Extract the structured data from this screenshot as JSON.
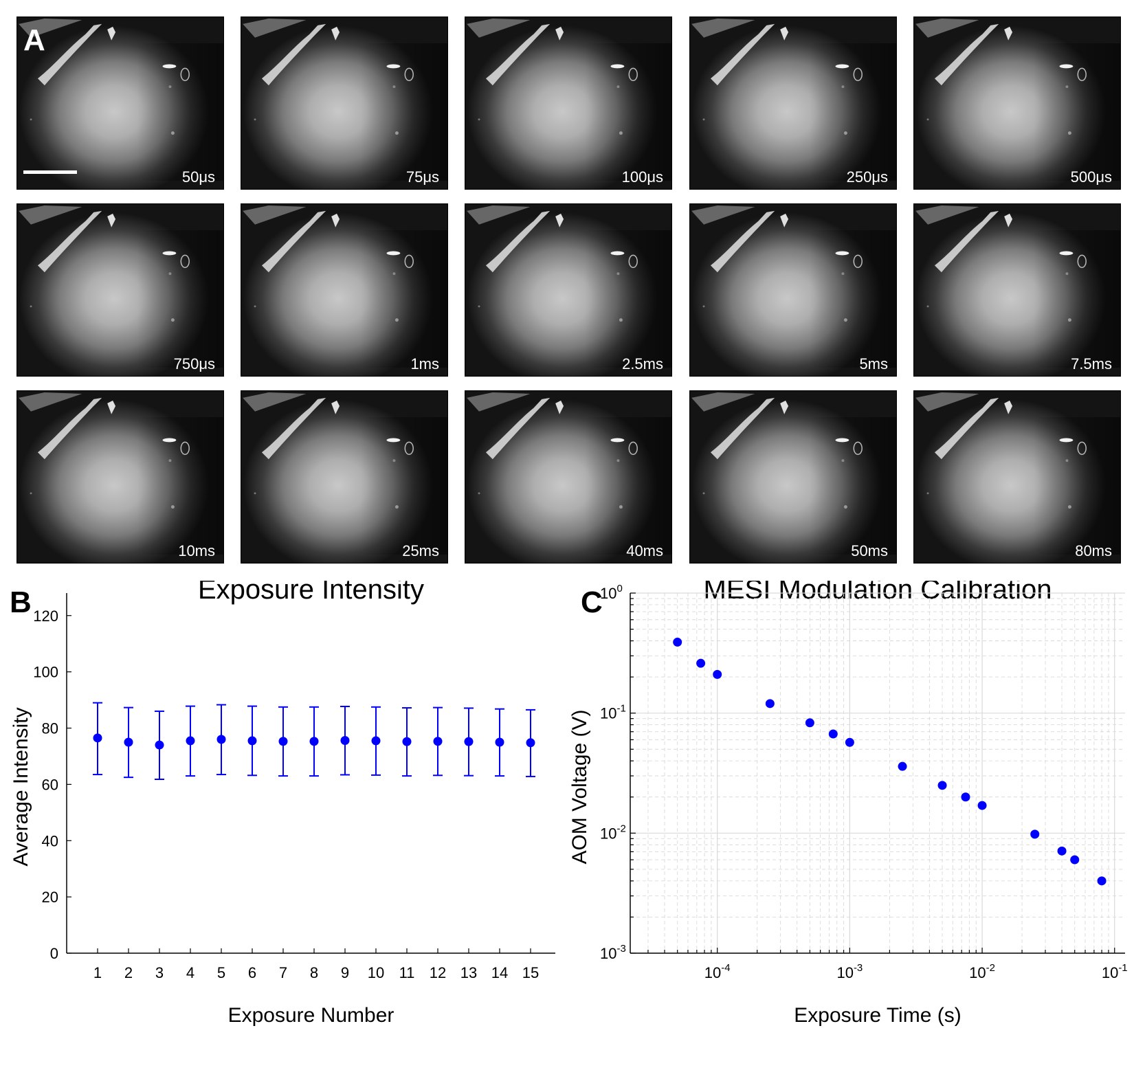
{
  "panel_a": {
    "letter": "A",
    "tiles": [
      {
        "lab_num": "50",
        "lab_unit": "μs"
      },
      {
        "lab_num": "75",
        "lab_unit": "μs"
      },
      {
        "lab_num": "100",
        "lab_unit": "μs"
      },
      {
        "lab_num": "250",
        "lab_unit": "μs"
      },
      {
        "lab_num": "500",
        "lab_unit": "μs"
      },
      {
        "lab_num": "750",
        "lab_unit": "μs"
      },
      {
        "lab_num": "1ms",
        "lab_unit": ""
      },
      {
        "lab_num": "2.5ms",
        "lab_unit": ""
      },
      {
        "lab_num": "5ms",
        "lab_unit": ""
      },
      {
        "lab_num": "7.5ms",
        "lab_unit": ""
      },
      {
        "lab_num": "10ms",
        "lab_unit": ""
      },
      {
        "lab_num": "25ms",
        "lab_unit": ""
      },
      {
        "lab_num": "40ms",
        "lab_unit": ""
      },
      {
        "lab_num": "50ms",
        "lab_unit": ""
      },
      {
        "lab_num": "80ms",
        "lab_unit": ""
      }
    ]
  },
  "panel_b": {
    "letter": "B"
  },
  "panel_c": {
    "letter": "C"
  },
  "colors": {
    "marker": "#0000ff",
    "axis": "#000000",
    "grid": "#d9d9d9"
  },
  "chart_data": [
    {
      "type": "scatter",
      "title": "Exposure Intensity",
      "xlabel": "Exposure Number",
      "ylabel": "Average Intensity",
      "x": [
        1,
        2,
        3,
        4,
        5,
        6,
        7,
        8,
        9,
        10,
        11,
        12,
        13,
        14,
        15
      ],
      "xticks": [
        1,
        2,
        3,
        4,
        5,
        6,
        7,
        8,
        9,
        10,
        11,
        12,
        13,
        14,
        15
      ],
      "xlim": [
        0,
        15.8
      ],
      "y": [
        76.5,
        75.0,
        74.0,
        75.5,
        76.0,
        75.5,
        75.3,
        75.3,
        75.6,
        75.5,
        75.2,
        75.3,
        75.2,
        75.0,
        74.8
      ],
      "y_err_low": [
        63.5,
        62.5,
        61.8,
        63.0,
        63.5,
        63.2,
        63.0,
        63.0,
        63.4,
        63.3,
        63.0,
        63.2,
        63.1,
        63.0,
        62.8
      ],
      "y_err_high": [
        89.0,
        87.3,
        86.0,
        87.8,
        88.3,
        87.8,
        87.5,
        87.5,
        87.7,
        87.5,
        87.2,
        87.3,
        87.1,
        86.8,
        86.5
      ],
      "ylim": [
        0,
        128
      ],
      "yticks": [
        0,
        20,
        40,
        60,
        80,
        100,
        120
      ],
      "grid": false
    },
    {
      "type": "scatter",
      "title": "MESI Modulation Calibration",
      "xlabel": "Exposure Time (s)",
      "ylabel": "AOM Voltage (V)",
      "xscale": "log",
      "yscale": "log",
      "x": [
        5e-05,
        7.5e-05,
        0.0001,
        0.00025,
        0.0005,
        0.00075,
        0.001,
        0.0025,
        0.005,
        0.0075,
        0.01,
        0.025,
        0.04,
        0.05,
        0.08
      ],
      "y": [
        0.39,
        0.26,
        0.21,
        0.12,
        0.083,
        0.067,
        0.057,
        0.036,
        0.025,
        0.02,
        0.017,
        0.0098,
        0.0071,
        0.006,
        0.004
      ],
      "xlim": [
        2.2e-05,
        0.12
      ],
      "ylim": [
        0.001,
        1
      ],
      "xticks": [
        {
          "base": "10",
          "exp": "-4"
        },
        {
          "base": "10",
          "exp": "-3"
        },
        {
          "base": "10",
          "exp": "-2"
        },
        {
          "base": "10",
          "exp": "-1"
        }
      ],
      "yticks": [
        {
          "base": "10",
          "exp": "-3"
        },
        {
          "base": "10",
          "exp": "-2"
        },
        {
          "base": "10",
          "exp": "-1"
        },
        {
          "base": "10",
          "exp": "0"
        }
      ],
      "grid": true
    }
  ]
}
